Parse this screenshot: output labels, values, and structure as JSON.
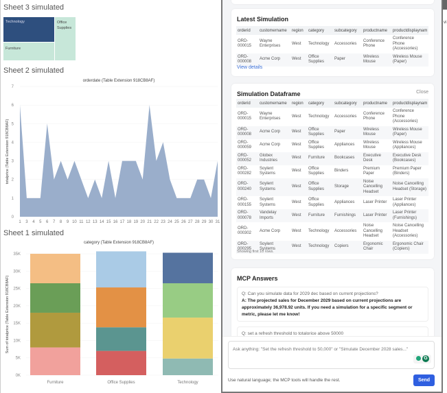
{
  "sheet3": {
    "title": "Sheet 3 simulated",
    "treemap": [
      {
        "label": "Technology",
        "color": "#2e4f7e"
      },
      {
        "label": "Furniture",
        "color": "#c7e7d9"
      },
      {
        "label": "Office Supplies",
        "color": "#c7e7d9"
      }
    ]
  },
  "sheet2": {
    "title": "Sheet 2 simulated"
  },
  "sheet1": {
    "title": "Sheet 1 simulated"
  },
  "chart_data": [
    {
      "type": "area",
      "title": "orderdate (Table Extension 918CB8AF)",
      "ylabel": "totalprice (Table Extension 918CB8AF)",
      "xlabel": "",
      "x": [
        "1",
        "3",
        "4",
        "5",
        "6",
        "7",
        "8",
        "9",
        "10",
        "11",
        "12",
        "13",
        "14",
        "15",
        "16",
        "17",
        "18",
        "19",
        "20",
        "21",
        "22",
        "23",
        "24",
        "25",
        "26",
        "27",
        "28",
        "29",
        "30",
        "31"
      ],
      "y": [
        6,
        1,
        1,
        1,
        5,
        2,
        3,
        2,
        3,
        2,
        1,
        2,
        1,
        3,
        1,
        3,
        3,
        3,
        2,
        6,
        3,
        4,
        2,
        1,
        1,
        1,
        2,
        2,
        1,
        3
      ],
      "ylim": [
        0,
        7
      ],
      "yticks": [
        "0",
        "1",
        "2",
        "3",
        "4",
        "5",
        "6",
        "7"
      ],
      "color": "#9aaecb",
      "grid": true
    },
    {
      "type": "bar",
      "stacked": true,
      "title": "category (Table Extension 918CB8AF)",
      "ylabel": "Sum of totalprice (Table Extension 918CB8AF)",
      "xlabel": "",
      "categories": [
        "Furniture",
        "Office Supplies",
        "Technology"
      ],
      "segments": [
        {
          "values": [
            8000,
            10000,
            8500,
            8500
          ],
          "colors": [
            "#f1a19c",
            "#b09a3e",
            "#6a9e57",
            "#f4be84"
          ]
        },
        {
          "values": [
            7000,
            6800,
            11500,
            10400
          ],
          "colors": [
            "#d45f5f",
            "#5b9590",
            "#e39145",
            "#aacbe6"
          ]
        },
        {
          "values": [
            4800,
            11800,
            9900,
            8800
          ],
          "colors": [
            "#8fbab3",
            "#ead06e",
            "#98cc84",
            "#55739f"
          ]
        }
      ],
      "ylim": [
        0,
        35000
      ],
      "yticks": [
        "0K",
        "5K",
        "10K",
        "15K",
        "20K",
        "25K",
        "30K",
        "35K"
      ],
      "grid": true
    }
  ],
  "latest": {
    "title": "Latest Simulation",
    "link": "View details",
    "columns": [
      "orderid",
      "customername",
      "region",
      "category",
      "subcategory",
      "productname",
      "productdisplaynam"
    ],
    "rows": [
      [
        "ORD-000015",
        "Wayne Enterprises",
        "West",
        "Technology",
        "Accessories",
        "Conference Phone",
        "Conference Phone (Accessories)"
      ],
      [
        "ORD-000008",
        "Acme Corp",
        "West",
        "Office Supplies",
        "Paper",
        "Wireless Mouse",
        "Wireless Mouse (Paper)"
      ]
    ]
  },
  "dataframe": {
    "title": "Simulation Dataframe",
    "close": "Close",
    "footer": "Showing first 10 rows.",
    "columns": [
      "orderid",
      "customername",
      "region",
      "category",
      "subcategory",
      "productname",
      "productdisplaynam"
    ],
    "rows": [
      [
        "ORD-000015",
        "Wayne Enterprises",
        "West",
        "Technology",
        "Accessories",
        "Conference Phone",
        "Conference Phone (Accessories)"
      ],
      [
        "ORD-000008",
        "Acme Corp",
        "West",
        "Office Supplies",
        "Paper",
        "Wireless Mouse",
        "Wireless Mouse (Paper)"
      ],
      [
        "ORD-000059",
        "Acme Corp",
        "West",
        "Office Supplies",
        "Appliances",
        "Wireless Mouse",
        "Wireless Mouse (Appliances)"
      ],
      [
        "ORD-000052",
        "Globex Industries",
        "West",
        "Furniture",
        "Bookcases",
        "Executive Desk",
        "Executive Desk (Bookcases)"
      ],
      [
        "ORD-000282",
        "Soylent Systems",
        "West",
        "Office Supplies",
        "Binders",
        "Premium Paper",
        "Premium Paper (Binders)"
      ],
      [
        "ORD-000240",
        "Soylent Systems",
        "West",
        "Office Supplies",
        "Storage",
        "Noise Cancelling Headset",
        "Noise Cancelling Headset (Storage)"
      ],
      [
        "ORD-000155",
        "Soylent Systems",
        "West",
        "Office Supplies",
        "Appliances",
        "Laser Printer",
        "Laser Printer (Appliances)"
      ],
      [
        "ORD-000078",
        "Vandelay Imports",
        "West",
        "Furniture",
        "Furnishings",
        "Laser Printer",
        "Laser Printer (Furnishings)"
      ],
      [
        "ORD-000302",
        "Acme Corp",
        "West",
        "Technology",
        "Accessories",
        "Noise Cancelling Headset",
        "Noise Cancelling Headset (Accessories)"
      ],
      [
        "ORD-000295",
        "Soylent Systems",
        "West",
        "Technology",
        "Copiers",
        "Ergonomic Chair",
        "Ergonomic Chair (Copiers)"
      ]
    ]
  },
  "mcp": {
    "title": "MCP Answers",
    "items": [
      {
        "q": "Q: Can you simulate data for 2029 dec based on current projections?",
        "a": "A: The projected sales for December 2029 based on current projections are approximately 36,978.92 units. If you need a simulation for a specific segment or metric, please let me know!"
      },
      {
        "q": "Q: set a refresh threshold to totalorice above 50000",
        "a": ""
      }
    ]
  },
  "input": {
    "placeholder": "Ask anything: \"Set the refresh threshold to 50,000\" or \"Simulate December 2028 sales...\"",
    "hint": "Use natural language; the MCP tools will handle the rest.",
    "send": "Send"
  },
  "strip": {
    "label": "vi"
  }
}
